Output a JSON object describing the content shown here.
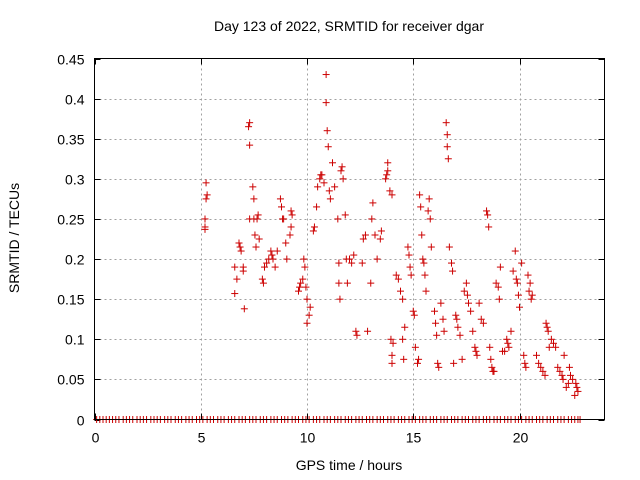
{
  "chart_data": {
    "type": "scatter",
    "title": "Day 123 of 2022, SRMTID for receiver dgar",
    "xlabel": "GPS time / hours",
    "ylabel": "SRMTID / TECUs",
    "xlim": [
      0,
      24
    ],
    "ylim": [
      0,
      0.45
    ],
    "xticks": [
      0,
      5,
      10,
      15,
      20
    ],
    "xtick_labels": [
      "0",
      "5",
      "10",
      "15",
      "20"
    ],
    "yticks": [
      0,
      0.05,
      0.1,
      0.15,
      0.2,
      0.25,
      0.3,
      0.35,
      0.4,
      0.45
    ],
    "ytick_labels": [
      "0",
      "0.05",
      "0.1",
      "0.15",
      "0.2",
      "0.25",
      "0.3",
      "0.35",
      "0.4",
      "0.45"
    ],
    "grid": true,
    "marker": "+",
    "color": "#cc0000",
    "series": [
      {
        "name": "SRMTID",
        "points": [
          [
            5.2,
            0.24
          ],
          [
            5.2,
            0.25
          ],
          [
            5.25,
            0.275
          ],
          [
            5.25,
            0.295
          ],
          [
            5.3,
            0.28
          ],
          [
            5.2,
            0.237
          ],
          [
            6.6,
            0.19
          ],
          [
            6.6,
            0.157
          ],
          [
            6.7,
            0.175
          ],
          [
            6.8,
            0.22
          ],
          [
            6.85,
            0.215
          ],
          [
            6.9,
            0.21
          ],
          [
            7.0,
            0.19
          ],
          [
            7.0,
            0.185
          ],
          [
            7.05,
            0.138
          ],
          [
            7.25,
            0.365
          ],
          [
            7.3,
            0.37
          ],
          [
            7.3,
            0.342
          ],
          [
            7.3,
            0.25
          ],
          [
            7.45,
            0.29
          ],
          [
            7.5,
            0.275
          ],
          [
            7.5,
            0.25
          ],
          [
            7.55,
            0.23
          ],
          [
            7.6,
            0.215
          ],
          [
            7.65,
            0.25
          ],
          [
            7.7,
            0.255
          ],
          [
            7.75,
            0.225
          ],
          [
            7.9,
            0.175
          ],
          [
            7.95,
            0.17
          ],
          [
            8.0,
            0.19
          ],
          [
            8.1,
            0.195
          ],
          [
            8.2,
            0.2
          ],
          [
            8.3,
            0.21
          ],
          [
            8.35,
            0.205
          ],
          [
            8.4,
            0.2
          ],
          [
            8.5,
            0.19
          ],
          [
            8.6,
            0.21
          ],
          [
            8.75,
            0.275
          ],
          [
            8.8,
            0.265
          ],
          [
            8.85,
            0.25
          ],
          [
            8.9,
            0.25
          ],
          [
            9.0,
            0.22
          ],
          [
            9.05,
            0.2
          ],
          [
            9.2,
            0.23
          ],
          [
            9.25,
            0.26
          ],
          [
            9.3,
            0.255
          ],
          [
            9.25,
            0.24
          ],
          [
            9.6,
            0.16
          ],
          [
            9.65,
            0.165
          ],
          [
            9.7,
            0.17
          ],
          [
            9.8,
            0.175
          ],
          [
            9.85,
            0.2
          ],
          [
            9.9,
            0.19
          ],
          [
            9.95,
            0.165
          ],
          [
            10.0,
            0.15
          ],
          [
            10.0,
            0.12
          ],
          [
            10.1,
            0.13
          ],
          [
            10.15,
            0.14
          ],
          [
            10.3,
            0.235
          ],
          [
            10.35,
            0.24
          ],
          [
            10.45,
            0.265
          ],
          [
            10.5,
            0.29
          ],
          [
            10.6,
            0.3
          ],
          [
            10.65,
            0.305
          ],
          [
            10.7,
            0.305
          ],
          [
            10.8,
            0.295
          ],
          [
            10.9,
            0.43
          ],
          [
            10.9,
            0.395
          ],
          [
            10.95,
            0.36
          ],
          [
            11.0,
            0.34
          ],
          [
            11.05,
            0.285
          ],
          [
            11.1,
            0.275
          ],
          [
            11.2,
            0.32
          ],
          [
            11.3,
            0.29
          ],
          [
            11.45,
            0.25
          ],
          [
            11.5,
            0.195
          ],
          [
            11.5,
            0.17
          ],
          [
            11.55,
            0.15
          ],
          [
            11.6,
            0.31
          ],
          [
            11.65,
            0.315
          ],
          [
            11.7,
            0.3
          ],
          [
            11.8,
            0.255
          ],
          [
            11.85,
            0.2
          ],
          [
            11.9,
            0.17
          ],
          [
            12.0,
            0.2
          ],
          [
            12.1,
            0.195
          ],
          [
            12.2,
            0.205
          ],
          [
            12.3,
            0.11
          ],
          [
            12.35,
            0.105
          ],
          [
            12.6,
            0.195
          ],
          [
            12.65,
            0.225
          ],
          [
            12.75,
            0.23
          ],
          [
            12.85,
            0.11
          ],
          [
            13.0,
            0.17
          ],
          [
            13.05,
            0.25
          ],
          [
            13.1,
            0.27
          ],
          [
            13.2,
            0.23
          ],
          [
            13.3,
            0.2
          ],
          [
            13.45,
            0.225
          ],
          [
            13.5,
            0.235
          ],
          [
            13.7,
            0.3
          ],
          [
            13.75,
            0.305
          ],
          [
            13.8,
            0.32
          ],
          [
            13.8,
            0.31
          ],
          [
            13.9,
            0.285
          ],
          [
            14.0,
            0.28
          ],
          [
            13.95,
            0.1
          ],
          [
            14.0,
            0.08
          ],
          [
            14.0,
            0.07
          ],
          [
            14.05,
            0.095
          ],
          [
            14.2,
            0.18
          ],
          [
            14.3,
            0.175
          ],
          [
            14.4,
            0.16
          ],
          [
            14.5,
            0.15
          ],
          [
            14.5,
            0.1
          ],
          [
            14.55,
            0.075
          ],
          [
            14.6,
            0.115
          ],
          [
            14.75,
            0.215
          ],
          [
            14.8,
            0.205
          ],
          [
            14.85,
            0.19
          ],
          [
            14.9,
            0.18
          ],
          [
            15.0,
            0.135
          ],
          [
            15.05,
            0.13
          ],
          [
            15.1,
            0.09
          ],
          [
            15.2,
            0.07
          ],
          [
            15.25,
            0.075
          ],
          [
            15.3,
            0.28
          ],
          [
            15.35,
            0.265
          ],
          [
            15.4,
            0.23
          ],
          [
            15.45,
            0.2
          ],
          [
            15.5,
            0.195
          ],
          [
            15.55,
            0.18
          ],
          [
            15.6,
            0.16
          ],
          [
            15.7,
            0.26
          ],
          [
            15.75,
            0.275
          ],
          [
            15.8,
            0.25
          ],
          [
            15.85,
            0.215
          ],
          [
            16.0,
            0.135
          ],
          [
            16.05,
            0.12
          ],
          [
            16.1,
            0.105
          ],
          [
            16.15,
            0.07
          ],
          [
            16.2,
            0.065
          ],
          [
            16.3,
            0.145
          ],
          [
            16.4,
            0.125
          ],
          [
            16.45,
            0.11
          ],
          [
            16.55,
            0.37
          ],
          [
            16.6,
            0.355
          ],
          [
            16.6,
            0.34
          ],
          [
            16.65,
            0.325
          ],
          [
            16.7,
            0.215
          ],
          [
            16.8,
            0.195
          ],
          [
            16.85,
            0.185
          ],
          [
            16.9,
            0.07
          ],
          [
            17.0,
            0.13
          ],
          [
            17.05,
            0.125
          ],
          [
            17.1,
            0.115
          ],
          [
            17.2,
            0.105
          ],
          [
            17.3,
            0.075
          ],
          [
            17.4,
            0.16
          ],
          [
            17.5,
            0.17
          ],
          [
            17.55,
            0.155
          ],
          [
            17.6,
            0.145
          ],
          [
            17.7,
            0.135
          ],
          [
            17.8,
            0.11
          ],
          [
            17.9,
            0.09
          ],
          [
            17.95,
            0.085
          ],
          [
            18.0,
            0.08
          ],
          [
            18.1,
            0.145
          ],
          [
            18.2,
            0.125
          ],
          [
            18.3,
            0.12
          ],
          [
            18.45,
            0.26
          ],
          [
            18.5,
            0.255
          ],
          [
            18.55,
            0.24
          ],
          [
            18.6,
            0.09
          ],
          [
            18.65,
            0.075
          ],
          [
            18.7,
            0.065
          ],
          [
            18.75,
            0.06
          ],
          [
            18.8,
            0.06
          ],
          [
            18.9,
            0.17
          ],
          [
            19.0,
            0.165
          ],
          [
            19.05,
            0.15
          ],
          [
            19.1,
            0.19
          ],
          [
            19.2,
            0.085
          ],
          [
            19.3,
            0.085
          ],
          [
            19.4,
            0.1
          ],
          [
            19.45,
            0.095
          ],
          [
            19.5,
            0.09
          ],
          [
            19.6,
            0.11
          ],
          [
            19.7,
            0.185
          ],
          [
            19.8,
            0.21
          ],
          [
            19.85,
            0.175
          ],
          [
            19.9,
            0.17
          ],
          [
            19.95,
            0.155
          ],
          [
            20.0,
            0.14
          ],
          [
            20.1,
            0.195
          ],
          [
            20.2,
            0.08
          ],
          [
            20.25,
            0.07
          ],
          [
            20.3,
            0.065
          ],
          [
            20.4,
            0.18
          ],
          [
            20.45,
            0.16
          ],
          [
            20.5,
            0.17
          ],
          [
            20.55,
            0.15
          ],
          [
            20.6,
            0.155
          ],
          [
            20.8,
            0.08
          ],
          [
            20.9,
            0.07
          ],
          [
            21.0,
            0.065
          ],
          [
            21.1,
            0.06
          ],
          [
            21.2,
            0.055
          ],
          [
            21.25,
            0.12
          ],
          [
            21.3,
            0.115
          ],
          [
            21.35,
            0.11
          ],
          [
            21.4,
            0.09
          ],
          [
            21.5,
            0.1
          ],
          [
            21.6,
            0.095
          ],
          [
            21.7,
            0.09
          ],
          [
            21.8,
            0.065
          ],
          [
            21.9,
            0.06
          ],
          [
            22.0,
            0.055
          ],
          [
            22.05,
            0.05
          ],
          [
            22.1,
            0.08
          ],
          [
            22.2,
            0.04
          ],
          [
            22.3,
            0.045
          ],
          [
            22.35,
            0.065
          ],
          [
            22.4,
            0.055
          ],
          [
            22.5,
            0.05
          ],
          [
            22.6,
            0.03
          ],
          [
            22.65,
            0.045
          ],
          [
            22.7,
            0.04
          ],
          [
            22.75,
            0.035
          ]
        ],
        "zero_points_x": [
          0.1,
          0.25,
          0.4,
          0.55,
          0.7,
          0.85,
          1.0,
          1.15,
          1.35,
          1.5,
          1.65,
          1.8,
          2.0,
          2.15,
          2.3,
          2.45,
          2.65,
          2.8,
          2.95,
          3.1,
          3.3,
          3.45,
          3.6,
          3.8,
          3.95,
          4.1,
          4.3,
          4.45,
          4.6,
          4.8,
          4.95,
          5.1,
          5.3,
          5.45,
          5.6,
          5.8,
          5.95,
          6.1,
          6.3,
          6.45,
          6.6,
          6.8,
          6.95,
          7.1,
          7.3,
          7.45,
          7.6,
          7.8,
          7.95,
          8.1,
          8.3,
          8.45,
          8.6,
          8.8,
          8.95,
          9.1,
          9.3,
          9.45,
          9.6,
          9.8,
          9.95,
          10.1,
          10.3,
          10.45,
          10.6,
          10.8,
          10.95,
          11.1,
          11.3,
          11.45,
          11.6,
          11.8,
          11.95,
          12.1,
          12.3,
          12.45,
          12.6,
          12.8,
          12.95,
          13.1,
          13.3,
          13.45,
          13.6,
          13.8,
          13.95,
          14.1,
          14.3,
          14.45,
          14.6,
          14.8,
          14.95,
          15.1,
          15.3,
          15.45,
          15.6,
          15.8,
          15.95,
          16.1,
          16.3,
          16.45,
          16.6,
          16.8,
          16.95,
          17.1,
          17.3,
          17.45,
          17.6,
          17.8,
          17.95,
          18.1,
          18.3,
          18.45,
          18.6,
          18.8,
          18.95,
          19.1,
          19.3,
          19.45,
          19.6,
          19.8,
          19.95,
          20.1,
          20.3,
          20.45,
          20.6,
          20.8,
          20.95,
          21.1,
          21.3,
          21.45,
          21.6,
          21.8,
          21.95,
          22.1,
          22.3,
          22.45,
          22.6,
          22.75,
          22.85
        ]
      }
    ]
  }
}
